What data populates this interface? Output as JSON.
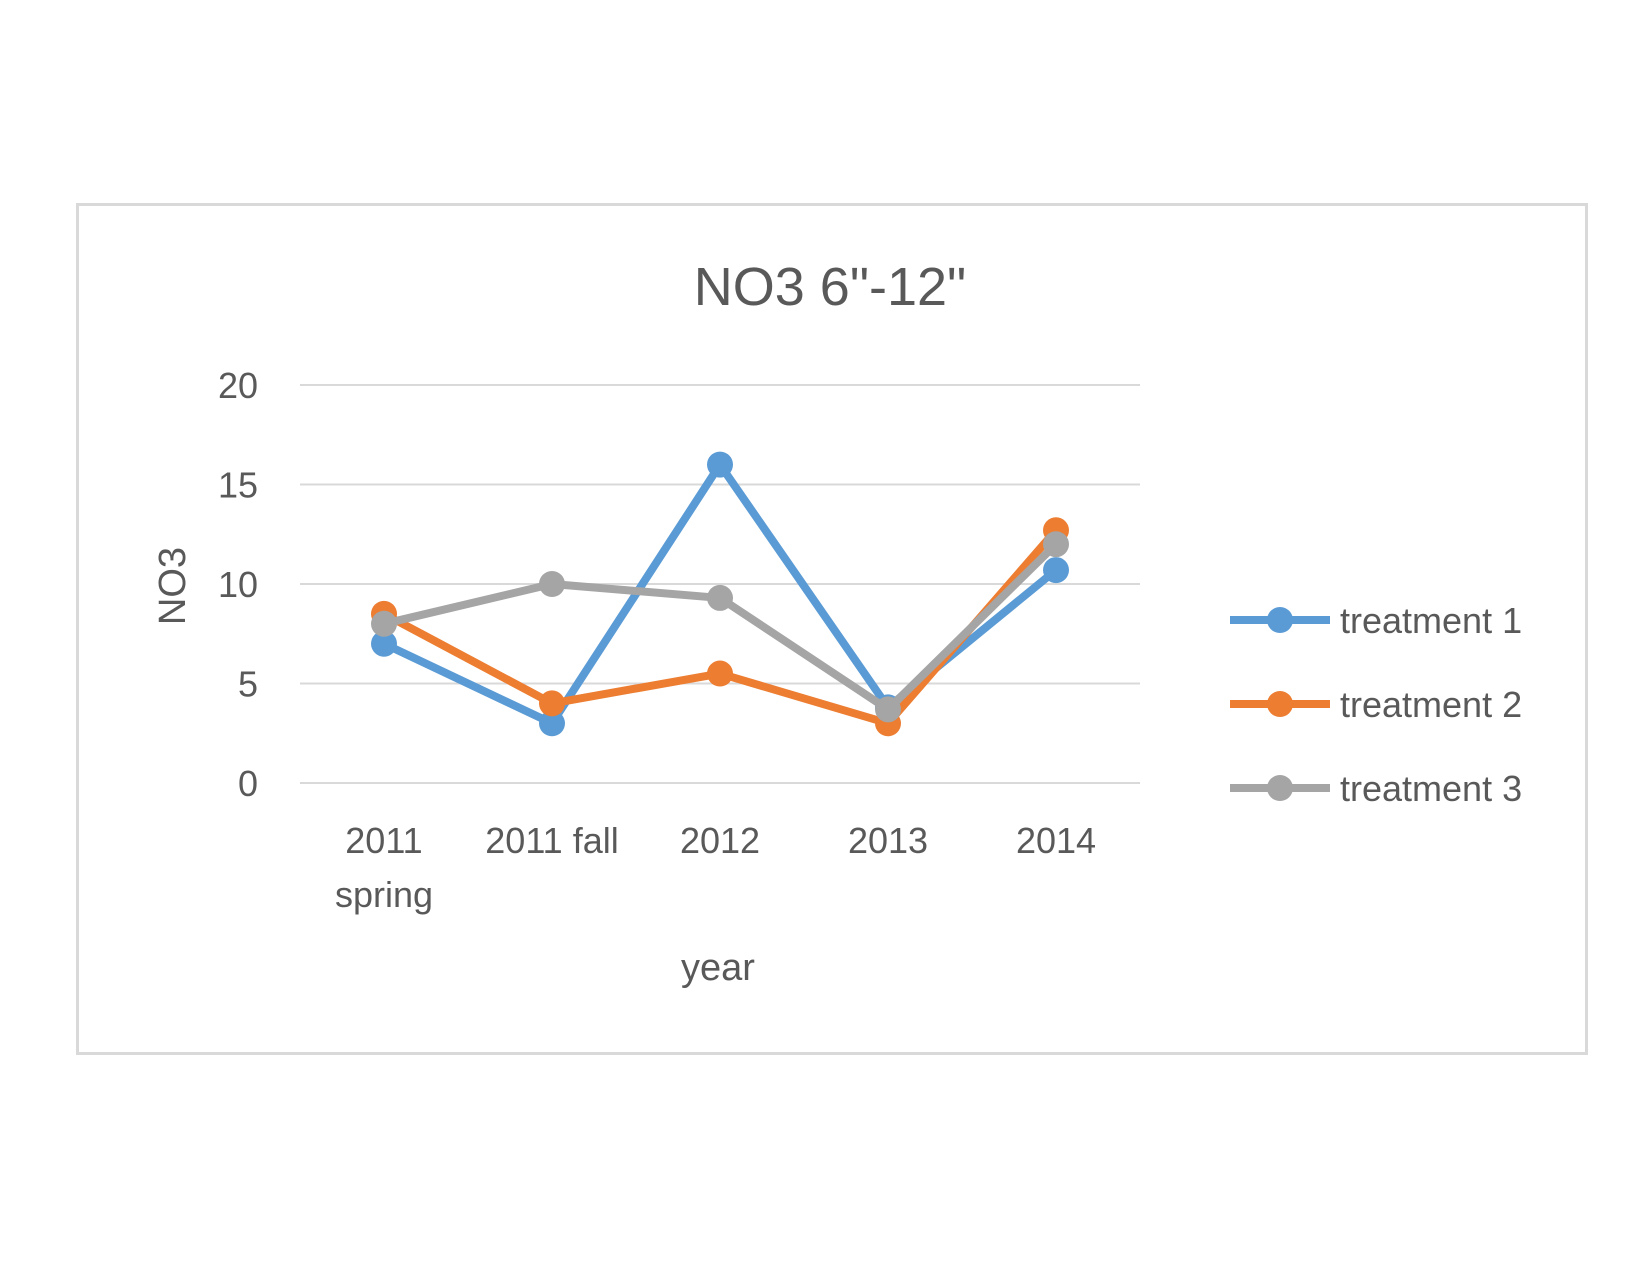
{
  "chart_data": {
    "type": "line",
    "title": "NO3 6\"-12\"",
    "xlabel": "year",
    "ylabel": "NO3",
    "categories": [
      [
        "2011",
        "spring"
      ],
      [
        "2011 fall"
      ],
      [
        "2012"
      ],
      [
        "2013"
      ],
      [
        "2014"
      ]
    ],
    "ylim": [
      0,
      20
    ],
    "yticks": [
      0,
      5,
      10,
      15,
      20
    ],
    "grid": true,
    "legend_position": "right",
    "series": [
      {
        "name": "treatment 1",
        "color": "#5b9bd5",
        "values": [
          7,
          3,
          16,
          3.8,
          10.7
        ]
      },
      {
        "name": "treatment 2",
        "color": "#ed7d31",
        "values": [
          8.5,
          4,
          5.5,
          3,
          12.7
        ]
      },
      {
        "name": "treatment 3",
        "color": "#a5a5a5",
        "values": [
          8,
          10,
          9.3,
          3.7,
          12
        ]
      }
    ]
  }
}
